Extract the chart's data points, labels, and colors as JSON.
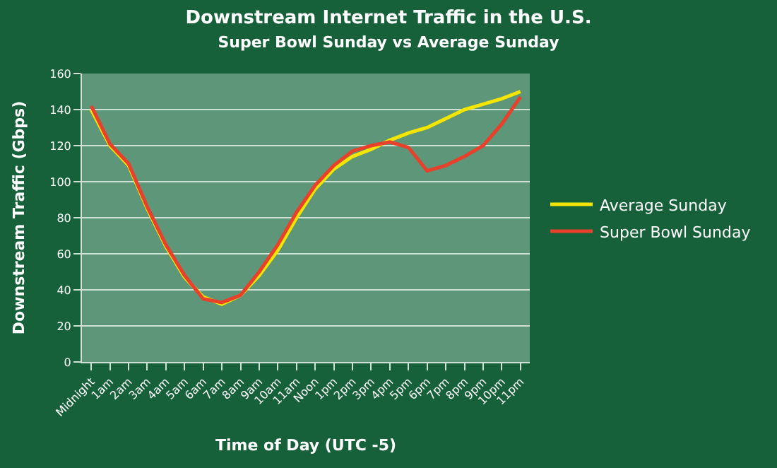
{
  "chart_data": {
    "type": "line",
    "title": "Downstream Internet Traffic in the U.S.",
    "subtitle": "Super Bowl Sunday vs Average Sunday",
    "xlabel": "Time of Day (UTC -5)",
    "ylabel": "Downstream Traffic (Gbps)",
    "categories": [
      "Midnight",
      "1am",
      "2am",
      "3am",
      "4am",
      "5am",
      "6am",
      "7am",
      "8am",
      "9am",
      "10am",
      "11am",
      "Noon",
      "1pm",
      "2pm",
      "3pm",
      "4pm",
      "5pm",
      "6pm",
      "7pm",
      "8pm",
      "9pm",
      "10pm",
      "11pm"
    ],
    "series": [
      {
        "name": "Average Sunday",
        "color": "#f5e600",
        "values": [
          140,
          120,
          109,
          85,
          64,
          47,
          36,
          32,
          37,
          48,
          62,
          80,
          96,
          107,
          114,
          118,
          123,
          127,
          130,
          135,
          140,
          143,
          146,
          150
        ]
      },
      {
        "name": "Super Bowl Sunday",
        "color": "#e8402a",
        "values": [
          142,
          121,
          110,
          86,
          65,
          48,
          35,
          33,
          37,
          50,
          65,
          83,
          98,
          109,
          117,
          120,
          122,
          119,
          106,
          109,
          114,
          120,
          132,
          147
        ]
      }
    ],
    "ylim": [
      0,
      160
    ],
    "yticks": [
      0,
      20,
      40,
      60,
      80,
      100,
      120,
      140,
      160
    ],
    "grid": "y",
    "legend": "right",
    "marker": "none",
    "line_style": "solid"
  }
}
